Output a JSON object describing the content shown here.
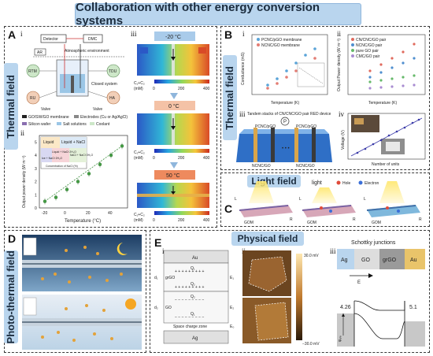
{
  "title": "Collaboration with other energy conversion systems",
  "fields": {
    "thermal_a": "Thermal field",
    "thermal_b": "Thermal field",
    "light": "Light field",
    "photothermal": "Photo-thermal field",
    "physical": "Physical field"
  },
  "panel_letters": {
    "A": "A",
    "B": "B",
    "C": "C",
    "D": "D",
    "E": "E"
  },
  "sub_labels": {
    "i": "i",
    "ii": "ii",
    "iii": "iii",
    "iv": "iv"
  },
  "panel_a": {
    "detector": "Detector",
    "dmc": "DMC",
    "ar": "AR",
    "atmosphere": "Atmospheric environment",
    "rtm": "RTM",
    "tdu": "TDU",
    "ru": "RU",
    "ha": "HA",
    "closed": "Closed system",
    "valve1": "Valve",
    "valve2": "Valve",
    "legend": [
      "GO/SW/GO membrane",
      "Electrodes (Cu or Ag/AgCl)",
      "Silicon wafer",
      "Salt solutions",
      "Coolant"
    ],
    "temps": [
      "-20 °C",
      "0 °C",
      "50 °C"
    ],
    "conc_label": "C₁+C₂",
    "conc_unit": "(mM)",
    "colorbar_ticks": [
      "0",
      "200",
      "400"
    ],
    "chart_ylabel": "Output power density (W m⁻²)",
    "chart_xlabel": "Temperature (°C)",
    "phase_labels": [
      "Liquid",
      "Liquid + NaCl",
      "Liquid + NaCl·2H₂O",
      "NaCl + NaCl·2H₂O",
      "Ice + NaCl·2H₂O"
    ],
    "phase_xlabel": "Concentration of NaCl (%)"
  },
  "panel_b": {
    "legend_i": [
      "PCNC/pGO membrane",
      "NCNC/GO membrane"
    ],
    "ylabel_i": "Conductance (mS)",
    "xlabel_i": "Temperature (K)",
    "legend_ii": [
      "CN/CNC/GO pair",
      "NCNC/GO pair",
      "pure GO pair",
      "CMC/GO pair"
    ],
    "ylabel_ii": "Output Power density (W m⁻²)",
    "xlabel_ii": "Temperature (K)",
    "device_title": "Tandem stacks of CN/CNC/GO pair RED device",
    "membranes": [
      "PCNC/pGO",
      "PCNC/pGO"
    ],
    "membranes_bottom": [
      "NCNC/GO",
      "NCNC/GO"
    ],
    "power_symbol": "P",
    "ylabel_iv": "Voltage (V)",
    "xlabel_iv": "Number of units"
  },
  "panel_c": {
    "light": "light",
    "hole": "Hole",
    "electron": "Electron",
    "gom": [
      "GOM",
      "GOM",
      "GOM"
    ],
    "l_labels": [
      "L",
      "L",
      "L"
    ],
    "r_labels": [
      "R",
      "R",
      "R"
    ]
  },
  "panel_e": {
    "layers": [
      "Au",
      "grGO",
      "GO",
      "Ag"
    ],
    "space_charge": "Space charge zone",
    "d_labels": [
      "d₁",
      "d₂"
    ],
    "q_labels": [
      "Q₁",
      "Q₂",
      "Q₂",
      "Q₁"
    ],
    "e_labels": [
      "E₁",
      "E₂",
      "E₀"
    ],
    "afm_scale": [
      "30.0 mV",
      "−30.0 mV"
    ],
    "schottky_title": "Schottky junctions",
    "junction_layers": [
      "Ag",
      "GO",
      "grGO",
      "Au"
    ],
    "field": "E",
    "energy_left": "4.26",
    "energy_right": "5.1",
    "phi": "φₐₗₑ"
  },
  "chart_data": [
    {
      "type": "scatter",
      "xlabel": "Temperature (°C)",
      "ylabel": "Output power density (W m⁻²)",
      "x": [
        -20,
        -10,
        0,
        10,
        20,
        30,
        40,
        50
      ],
      "y": [
        0.5,
        0.8,
        1.4,
        2.0,
        2.6,
        3.3,
        4.0,
        4.7
      ],
      "xlim": [
        -25,
        55
      ],
      "ylim": [
        0,
        5.5
      ]
    }
  ],
  "colors": {
    "banner": "#b9d5ee",
    "dash": "#3a3a3a",
    "accent": "#1b2c3e"
  }
}
